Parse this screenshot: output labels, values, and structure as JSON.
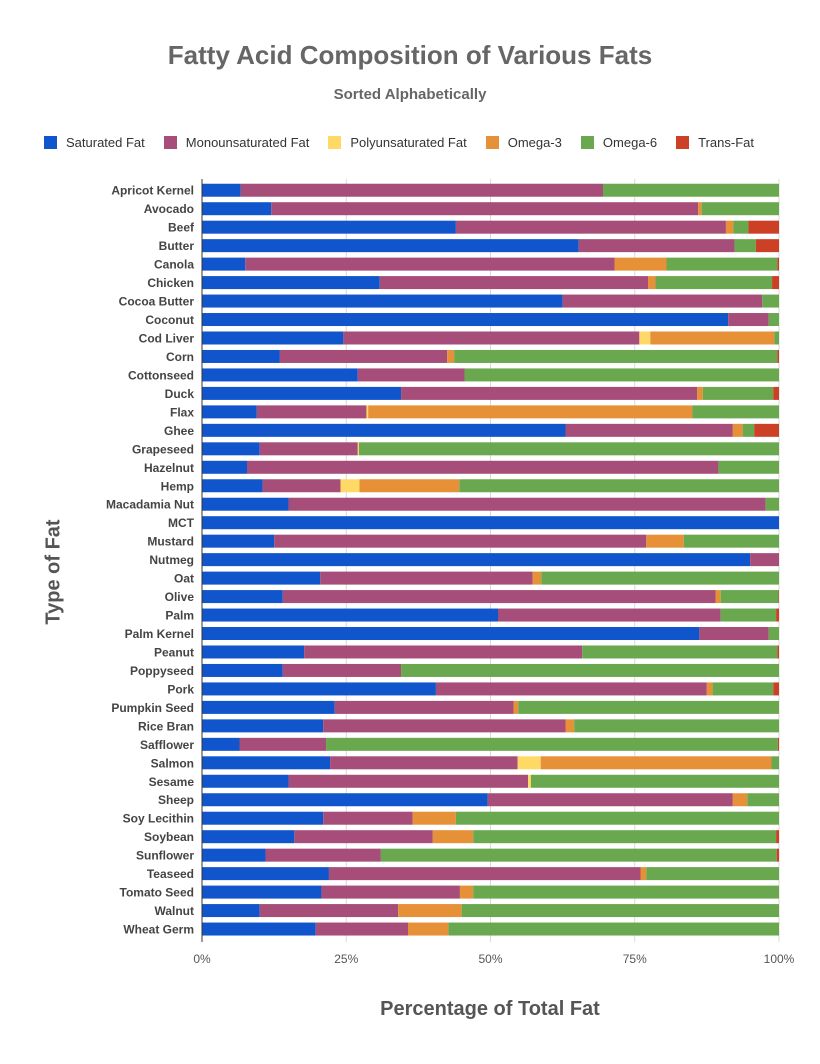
{
  "chart_data": {
    "type": "bar",
    "orientation": "horizontal",
    "stacked": true,
    "title": "Fatty Acid Composition of Various Fats",
    "subtitle": "Sorted Alphabetically",
    "xlabel": "Percentage of Total Fat",
    "ylabel": "Type of Fat",
    "xlim": [
      0,
      100
    ],
    "x_ticks": [
      "0%",
      "25%",
      "50%",
      "75%",
      "100%"
    ],
    "grid": "vertical",
    "legend_position": "top",
    "categories": [
      "Apricot Kernel",
      "Avocado",
      "Beef",
      "Butter",
      "Canola",
      "Chicken",
      "Cocoa Butter",
      "Coconut",
      "Cod Liver",
      "Corn",
      "Cottonseed",
      "Duck",
      "Flax",
      "Ghee",
      "Grapeseed",
      "Hazelnut",
      "Hemp",
      "Macadamia Nut",
      "MCT",
      "Mustard",
      "Nutmeg",
      "Oat",
      "Olive",
      "Palm",
      "Palm Kernel",
      "Peanut",
      "Poppyseed",
      "Pork",
      "Pumpkin Seed",
      "Rice Bran",
      "Safflower",
      "Salmon",
      "Sesame",
      "Sheep",
      "Soy Lecithin",
      "Soybean",
      "Sunflower",
      "Teaseed",
      "Tomato Seed",
      "Walnut",
      "Wheat Germ"
    ],
    "series": [
      {
        "name": "Saturated Fat",
        "color": "#1155cc",
        "values": [
          6.7,
          12,
          44,
          65.3,
          7.5,
          30.8,
          62.5,
          91.2,
          24.5,
          13.5,
          27,
          34.5,
          9.5,
          63,
          10,
          7.8,
          10.5,
          15,
          100,
          12.5,
          95,
          20.5,
          14,
          51.3,
          86.2,
          17.7,
          14,
          40.5,
          23,
          21,
          6.5,
          22.2,
          15,
          49.5,
          21,
          16,
          11,
          22,
          20.7,
          10,
          19.7
        ]
      },
      {
        "name": "Monounsaturated Fat",
        "color": "#a64d79",
        "values": [
          62.8,
          74,
          46.8,
          27,
          64,
          46.5,
          34.6,
          7,
          51.3,
          29,
          18.5,
          51.3,
          19,
          29,
          17,
          81.7,
          13.5,
          82.7,
          0,
          64.5,
          5,
          36.8,
          75,
          38.6,
          12,
          48.2,
          20.5,
          46.9,
          31,
          42,
          15,
          32.5,
          41.5,
          42.5,
          15.5,
          24,
          20,
          54,
          24,
          24,
          16
        ]
      },
      {
        "name": "Polyunsaturated Fat",
        "color": "#ffd966",
        "values": [
          0,
          0,
          0,
          0,
          0,
          0,
          0,
          0,
          1.9,
          0,
          0,
          0,
          0.3,
          0,
          0.2,
          0,
          3.3,
          0,
          0,
          0,
          0,
          0,
          0,
          0,
          0,
          0,
          0,
          0,
          0,
          0,
          0,
          4,
          0.5,
          0,
          0,
          0,
          0,
          0,
          0,
          0,
          0
        ]
      },
      {
        "name": "Omega-3",
        "color": "#e69138",
        "values": [
          0,
          0.6,
          1.3,
          0,
          9,
          1.3,
          0,
          0,
          21.5,
          1.2,
          0,
          1,
          56.2,
          1.7,
          0,
          0,
          17.3,
          0,
          0,
          6.5,
          0,
          1.5,
          0.9,
          0,
          0,
          0,
          0,
          1,
          0.8,
          1.5,
          0,
          40,
          0,
          2.5,
          7.5,
          7,
          0,
          1,
          2.3,
          11,
          7
        ]
      },
      {
        "name": "Omega-6",
        "color": "#6aa84f",
        "values": [
          30.5,
          13.4,
          2.6,
          3.7,
          19.2,
          20.2,
          2.9,
          1.8,
          0.8,
          56,
          54.5,
          12.2,
          15,
          2,
          72.8,
          10.5,
          55.4,
          2.3,
          0,
          16.5,
          0,
          41.2,
          10,
          9.6,
          1.8,
          33.8,
          65.5,
          10.5,
          45.2,
          35.5,
          78.3,
          1.3,
          43,
          5.5,
          56,
          52.5,
          68.6,
          23,
          53,
          55,
          57.3
        ]
      },
      {
        "name": "Trans-Fat",
        "color": "#cc4125",
        "values": [
          0,
          0,
          5.3,
          4,
          0.3,
          1.2,
          0,
          0,
          0,
          0.3,
          0,
          1,
          0,
          4.3,
          0,
          0,
          0,
          0,
          0,
          0,
          0,
          0,
          0.1,
          0.5,
          0,
          0.3,
          0,
          1,
          0,
          0,
          0.2,
          0,
          0,
          0,
          0,
          0.5,
          0.4,
          0,
          0,
          0,
          0
        ]
      }
    ]
  }
}
